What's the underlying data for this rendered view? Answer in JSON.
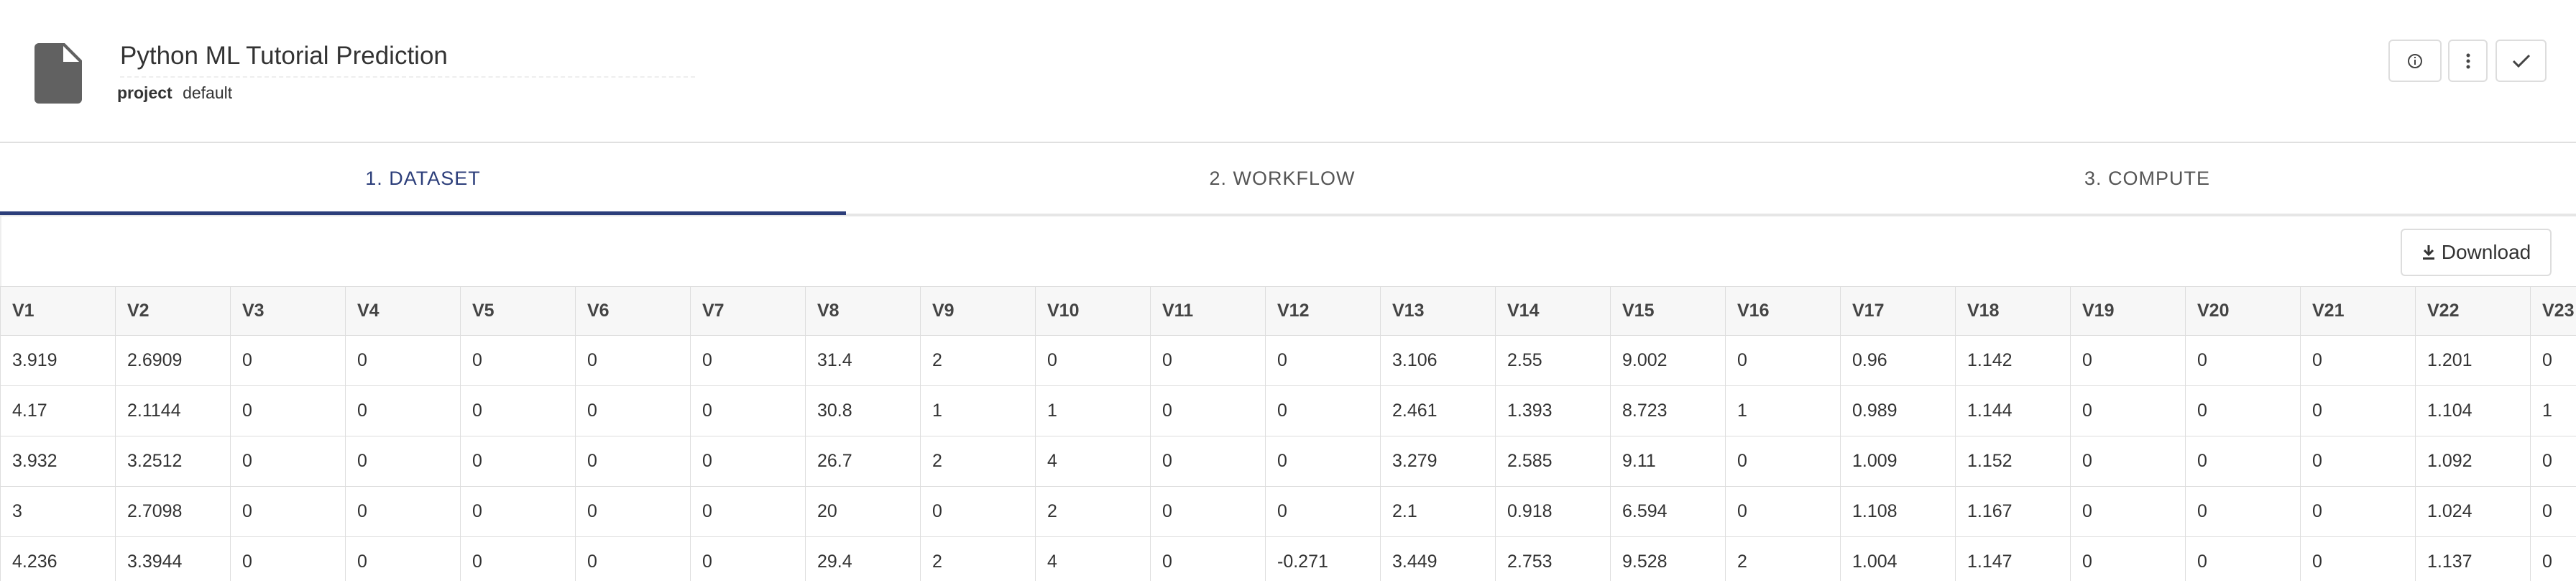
{
  "header": {
    "title": "Python ML Tutorial Prediction",
    "project_label": "project",
    "project_value": "default"
  },
  "tabs": [
    "1. DATASET",
    "2. WORKFLOW",
    "3. COMPUTE"
  ],
  "download": "Download",
  "table": {
    "columns": [
      "V1",
      "V2",
      "V3",
      "V4",
      "V5",
      "V6",
      "V7",
      "V8",
      "V9",
      "V10",
      "V11",
      "V12",
      "V13",
      "V14",
      "V15",
      "V16",
      "V17",
      "V18",
      "V19",
      "V20",
      "V21",
      "V22",
      "V23"
    ],
    "rows": [
      [
        "3.919",
        "2.6909",
        "0",
        "0",
        "0",
        "0",
        "0",
        "31.4",
        "2",
        "0",
        "0",
        "0",
        "3.106",
        "2.55",
        "9.002",
        "0",
        "0.96",
        "1.142",
        "0",
        "0",
        "0",
        "1.201",
        "0"
      ],
      [
        "4.17",
        "2.1144",
        "0",
        "0",
        "0",
        "0",
        "0",
        "30.8",
        "1",
        "1",
        "0",
        "0",
        "2.461",
        "1.393",
        "8.723",
        "1",
        "0.989",
        "1.144",
        "0",
        "0",
        "0",
        "1.104",
        "1"
      ],
      [
        "3.932",
        "3.2512",
        "0",
        "0",
        "0",
        "0",
        "0",
        "26.7",
        "2",
        "4",
        "0",
        "0",
        "3.279",
        "2.585",
        "9.11",
        "0",
        "1.009",
        "1.152",
        "0",
        "0",
        "0",
        "1.092",
        "0"
      ],
      [
        "3",
        "2.7098",
        "0",
        "0",
        "0",
        "0",
        "0",
        "20",
        "0",
        "2",
        "0",
        "0",
        "2.1",
        "0.918",
        "6.594",
        "0",
        "1.108",
        "1.167",
        "0",
        "0",
        "0",
        "1.024",
        "0"
      ],
      [
        "4.236",
        "3.3944",
        "0",
        "0",
        "0",
        "0",
        "0",
        "29.4",
        "2",
        "4",
        "0",
        "-0.271",
        "3.449",
        "2.753",
        "9.528",
        "2",
        "1.004",
        "1.147",
        "0",
        "0",
        "0",
        "1.137",
        "0"
      ]
    ]
  }
}
